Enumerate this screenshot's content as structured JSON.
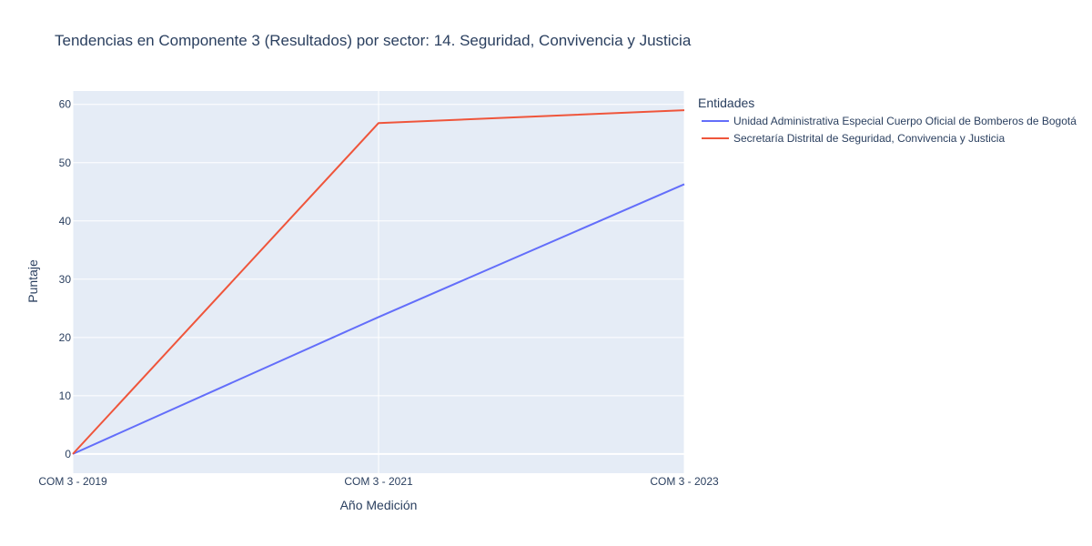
{
  "chart_data": {
    "type": "line",
    "title": "Tendencias en Componente 3 (Resultados) por sector: 14. Seguridad, Convivencia y Justicia",
    "xlabel": "Año Medición",
    "ylabel": "Puntaje",
    "categories": [
      "COM 3 - 2019",
      "COM 3 - 2021",
      "COM 3 - 2023"
    ],
    "yticks": [
      0,
      10,
      20,
      30,
      40,
      50,
      60
    ],
    "ylim": [
      -3.3,
      62.3
    ],
    "grid": true,
    "legend": {
      "title": "Entidades",
      "placement": "right"
    },
    "series": [
      {
        "name": "Unidad Administrativa Especial Cuerpo Oficial de Bomberos de Bogotá",
        "color": "#636efa",
        "values": [
          0,
          23.5,
          46.3
        ]
      },
      {
        "name": "Secretaría Distrital de Seguridad, Convivencia y Justicia",
        "color": "#ef553b",
        "values": [
          0,
          56.8,
          59.0
        ]
      }
    ]
  }
}
